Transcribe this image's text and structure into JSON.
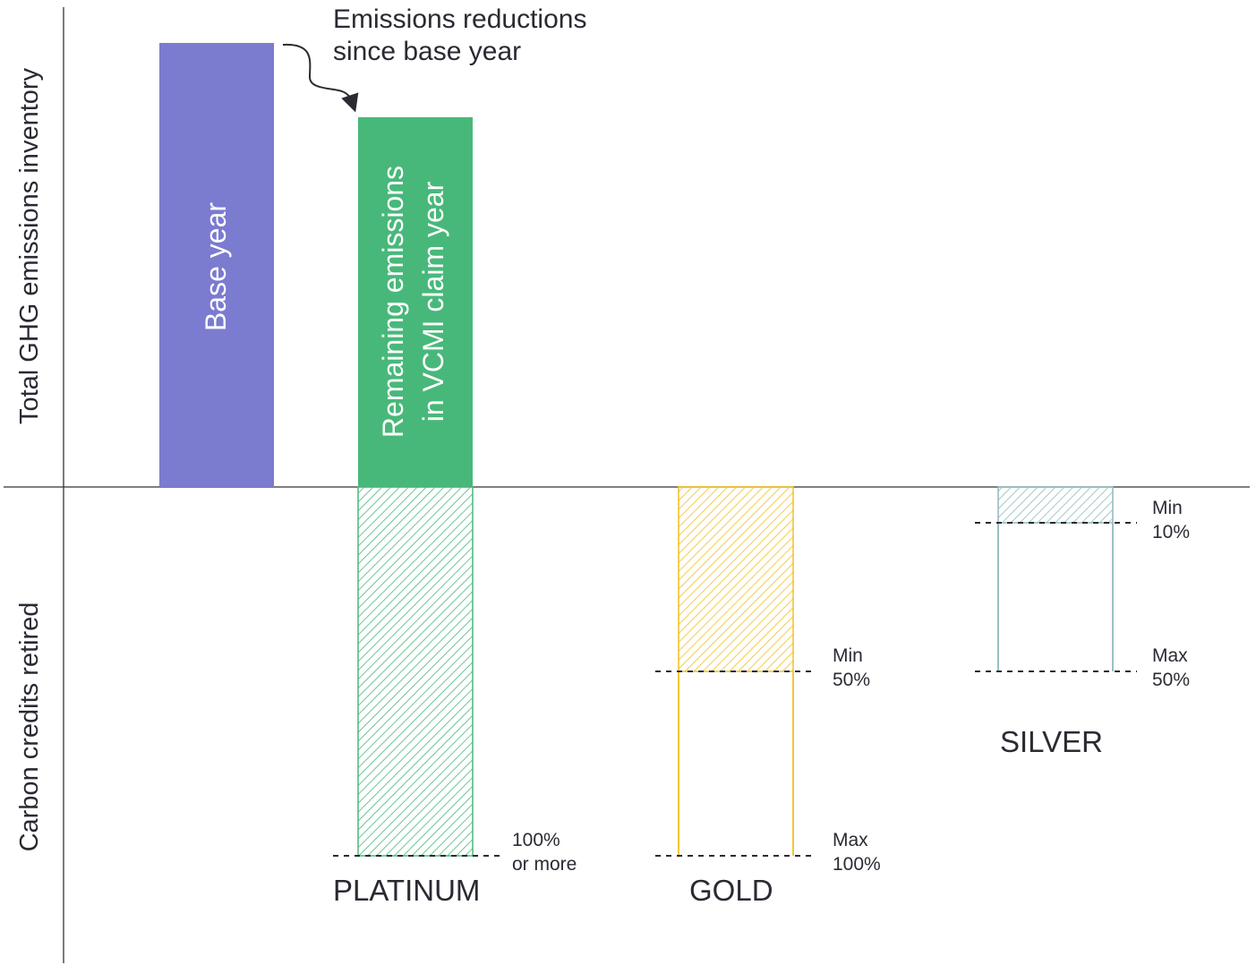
{
  "colors": {
    "base_year": "#7b7bd0",
    "remaining": "#48b87a",
    "platinum_hatch": "#48b87a",
    "gold_hatch": "#f0c020",
    "silver_hatch": "#8fb9bd",
    "axis": "#333333",
    "text": "#2a2a33"
  },
  "axes": {
    "top_label": "Total GHG emissions inventory",
    "bottom_label": "Carbon credits retired"
  },
  "bars": {
    "base_year_label": "Base year",
    "remaining_line1": "Remaining emissions",
    "remaining_line2": "in VCMI claim year"
  },
  "callout": {
    "line1": "Emissions reductions",
    "line2": "since base year",
    "icon": "curved-arrow-icon"
  },
  "tiers": {
    "platinum": {
      "name": "PLATINUM",
      "mark_line1": "100%",
      "mark_line2": "or more"
    },
    "gold": {
      "name": "GOLD",
      "min_line1": "Min",
      "min_line2": "50%",
      "max_line1": "Max",
      "max_line2": "100%"
    },
    "silver": {
      "name": "SILVER",
      "min_line1": "Min",
      "min_line2": "10%",
      "max_line1": "Max",
      "max_line2": "50%"
    }
  }
}
